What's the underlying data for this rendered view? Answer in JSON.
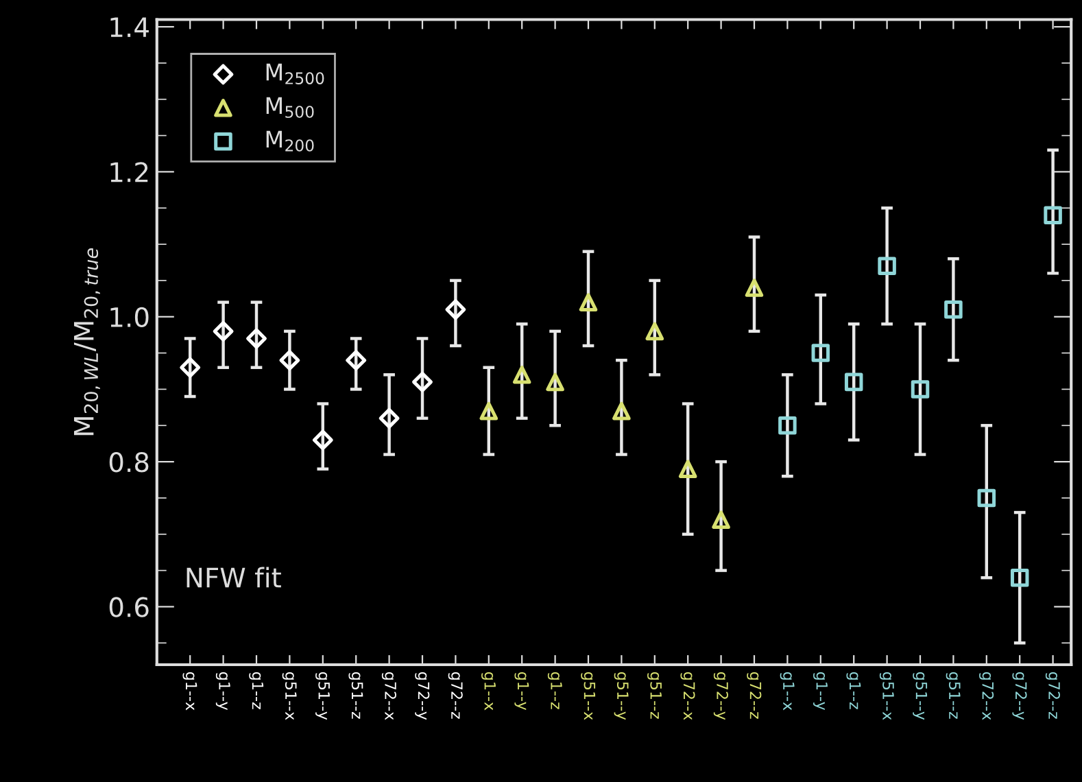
{
  "chart_data": {
    "type": "scatter",
    "ylabel": "M$_{20,WL}$/M$_{20,true}$",
    "categories": [
      "g1--x",
      "g1--y",
      "g1--z",
      "g51--x",
      "g51--y",
      "g51--z",
      "g72--x",
      "g72--y",
      "g72--z",
      "g1--x",
      "g1--y",
      "g1--z",
      "g51--x",
      "g51--y",
      "g51--z",
      "g72--x",
      "g72--y",
      "g72--z",
      "g1--x",
      "g1--y",
      "g1--z",
      "g51--x",
      "g51--y",
      "g51--z",
      "g72--x",
      "g72--y",
      "g72--z"
    ],
    "series": [
      {
        "name": "M$_{2500}$",
        "color": "#ffffff",
        "marker": "diamond",
        "values": [
          0.93,
          0.98,
          0.97,
          0.94,
          0.83,
          0.94,
          0.86,
          0.91,
          1.01,
          null,
          null,
          null,
          null,
          null,
          null,
          null,
          null,
          null,
          null,
          null,
          null,
          null,
          null,
          null,
          null,
          null,
          null
        ],
        "errors": [
          [
            0.89,
            0.97
          ],
          [
            0.93,
            1.02
          ],
          [
            0.93,
            1.02
          ],
          [
            0.9,
            0.98
          ],
          [
            0.79,
            0.88
          ],
          [
            0.9,
            0.97
          ],
          [
            0.81,
            0.92
          ],
          [
            0.86,
            0.97
          ],
          [
            0.96,
            1.05
          ],
          null,
          null,
          null,
          null,
          null,
          null,
          null,
          null,
          null,
          null,
          null,
          null,
          null,
          null,
          null,
          null,
          null,
          null
        ]
      },
      {
        "name": "M$_{500}$",
        "color": "#d8e070",
        "marker": "triangle",
        "values": [
          null,
          null,
          null,
          null,
          null,
          null,
          null,
          null,
          null,
          0.87,
          0.92,
          0.91,
          1.02,
          0.87,
          0.98,
          0.79,
          0.72,
          1.04,
          null,
          null,
          null,
          null,
          null,
          null,
          null,
          null,
          null
        ],
        "errors": [
          null,
          null,
          null,
          null,
          null,
          null,
          null,
          null,
          null,
          [
            0.81,
            0.93
          ],
          [
            0.86,
            0.99
          ],
          [
            0.85,
            0.98
          ],
          [
            0.96,
            1.09
          ],
          [
            0.81,
            0.94
          ],
          [
            0.92,
            1.05
          ],
          [
            0.7,
            0.88
          ],
          [
            0.65,
            0.8
          ],
          [
            0.98,
            1.11
          ],
          null,
          null,
          null,
          null,
          null,
          null,
          null,
          null,
          null
        ]
      },
      {
        "name": "M$_{200}$",
        "color": "#8fd6d8",
        "marker": "square",
        "values": [
          null,
          null,
          null,
          null,
          null,
          null,
          null,
          null,
          null,
          null,
          null,
          null,
          null,
          null,
          null,
          null,
          null,
          null,
          0.85,
          0.95,
          0.91,
          1.07,
          0.9,
          1.01,
          0.75,
          0.64,
          1.14
        ],
        "errors": [
          null,
          null,
          null,
          null,
          null,
          null,
          null,
          null,
          null,
          null,
          null,
          null,
          null,
          null,
          null,
          null,
          null,
          null,
          [
            0.78,
            0.92
          ],
          [
            0.88,
            1.03
          ],
          [
            0.83,
            0.99
          ],
          [
            0.99,
            1.15
          ],
          [
            0.81,
            0.99
          ],
          [
            0.94,
            1.08
          ],
          [
            0.64,
            0.85
          ],
          [
            0.55,
            0.73
          ],
          [
            1.06,
            1.23
          ]
        ]
      }
    ],
    "ylim": [
      0.52,
      1.41
    ],
    "yticks": [
      0.6,
      0.8,
      {
        "value": 1,
        "label": "1.0"
      },
      1.2,
      1.4
    ],
    "annotations": [
      "NFW fit"
    ],
    "legend": "top left",
    "grid": false
  }
}
